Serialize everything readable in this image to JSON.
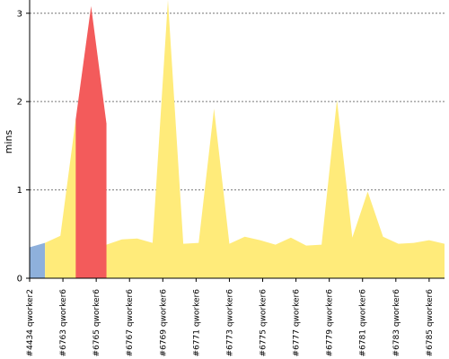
{
  "chart_data": {
    "type": "area",
    "title": "",
    "xlabel": "",
    "ylabel": "mins",
    "ylim": [
      0,
      3.15
    ],
    "yticks": [
      0,
      1,
      2,
      3
    ],
    "grid": true,
    "colors": {
      "blue_area": "#8eb0dc",
      "red_area": "#f35b5b",
      "yellow_area": "#ffeb7a",
      "grid_line": "#777777",
      "axis_line": "#000000"
    },
    "x_tick_labels": [
      "#4434 qworker2",
      "#6763 qworker6",
      "#6765 qworker6",
      "#6767 qworker6",
      "#6769 qworker6",
      "#6771 qworker6",
      "#6773 qworker6",
      "#6775 qworker6",
      "#6777 qworker6",
      "#6779 qworker6",
      "#6781 qworker6",
      "#6783 qworker6",
      "#6785 qworker6"
    ],
    "series": [
      {
        "color_key": "blue_area",
        "points": [
          {
            "x": 0,
            "y": 0.35
          },
          {
            "x": 0.5,
            "y": 0.4
          }
        ]
      },
      {
        "color_key": "yellow_area",
        "points": [
          {
            "x": 0.5,
            "y": 0.4
          },
          {
            "x": 1.0,
            "y": 0.48
          },
          {
            "x": 1.5,
            "y": 1.8
          },
          {
            "x": 2.0,
            "y": 1.75
          },
          {
            "x": 2.5,
            "y": 0.38
          },
          {
            "x": 3.0,
            "y": 0.44
          },
          {
            "x": 3.5,
            "y": 0.45
          },
          {
            "x": 4.0,
            "y": 0.4
          },
          {
            "x": 4.5,
            "y": 3.15
          },
          {
            "x": 5.0,
            "y": 0.39
          },
          {
            "x": 5.5,
            "y": 0.4
          },
          {
            "x": 6.0,
            "y": 1.92
          },
          {
            "x": 6.5,
            "y": 0.39
          },
          {
            "x": 7.0,
            "y": 0.47
          },
          {
            "x": 7.5,
            "y": 0.43
          },
          {
            "x": 8.0,
            "y": 0.38
          },
          {
            "x": 8.5,
            "y": 0.46
          },
          {
            "x": 9.0,
            "y": 0.37
          },
          {
            "x": 9.5,
            "y": 0.38
          },
          {
            "x": 10.0,
            "y": 2.02
          },
          {
            "x": 10.5,
            "y": 0.46
          },
          {
            "x": 11.0,
            "y": 0.98
          },
          {
            "x": 11.5,
            "y": 0.47
          },
          {
            "x": 12.0,
            "y": 0.39
          },
          {
            "x": 12.5,
            "y": 0.4
          },
          {
            "x": 13.0,
            "y": 0.43
          },
          {
            "x": 13.5,
            "y": 0.39
          }
        ]
      },
      {
        "color_key": "red_area",
        "points": [
          {
            "x": 1.5,
            "y": 1.8
          },
          {
            "x": 2.0,
            "y": 3.08
          },
          {
            "x": 2.5,
            "y": 1.75
          }
        ]
      }
    ]
  }
}
